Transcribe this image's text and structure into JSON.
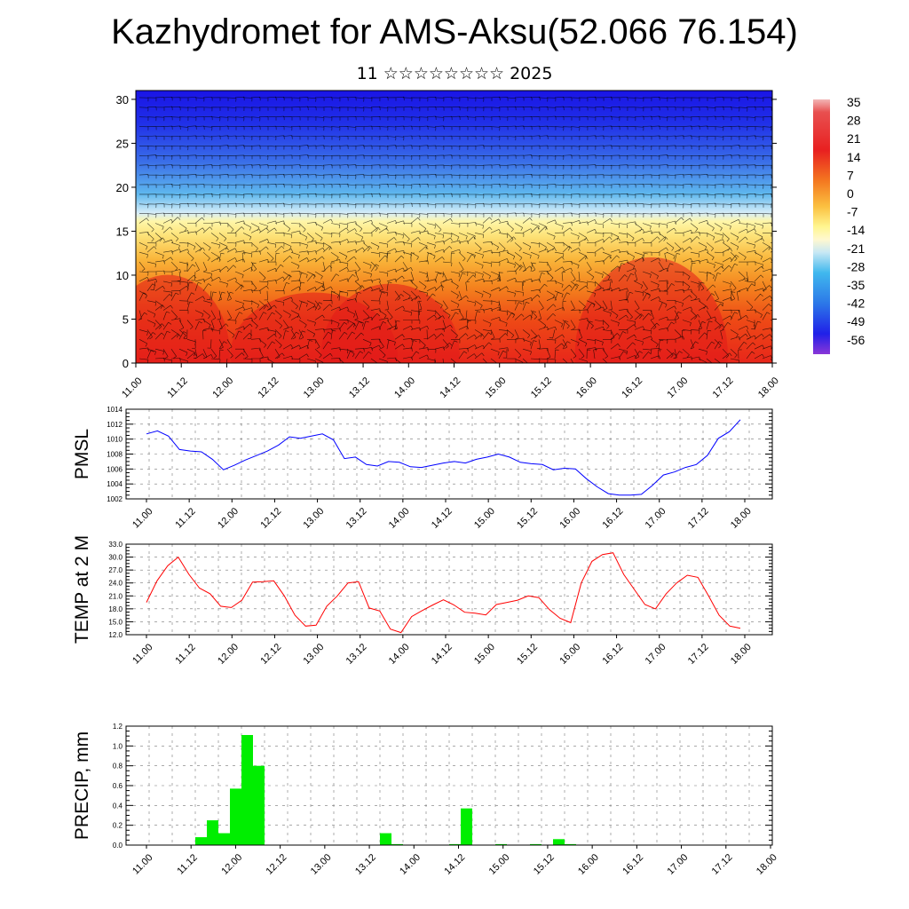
{
  "title": "Kazhydromet for AMS-Aksu(52.066 76.154)",
  "subtitle": "11 ☆☆☆☆☆☆☆☆ 2025",
  "colors": {
    "pmsl_line": "#0000ff",
    "temp_line": "#ff0000",
    "precip_bar": "#00ee00",
    "grid": "#555555"
  },
  "chart_data": [
    {
      "type": "heatmap",
      "name": "cross-section",
      "x_ticks": [
        "11.00",
        "11.12",
        "12.00",
        "12.12",
        "13.00",
        "13.12",
        "14.00",
        "14.12",
        "15.00",
        "15.12",
        "16.00",
        "16.12",
        "17.00",
        "17.12",
        "18.00"
      ],
      "y_ticks": [
        "0",
        "5",
        "10",
        "15",
        "20",
        "25",
        "30"
      ],
      "ylim": [
        0,
        31
      ],
      "colorbar_labels": [
        "35",
        "28",
        "21",
        "14",
        "7",
        "0",
        "-7",
        "-14",
        "-21",
        "-28",
        "-35",
        "-42",
        "-49",
        "-56"
      ],
      "overlay": "wind barbs"
    },
    {
      "type": "line",
      "ylabel": "PMSL",
      "ylim": [
        1002,
        1014
      ],
      "y_ticks": [
        "1002",
        "1004",
        "1006",
        "1008",
        "1010",
        "1012",
        "1014"
      ],
      "x_ticks": [
        "11.00",
        "11.12",
        "12.00",
        "12.12",
        "13.00",
        "13.12",
        "14.00",
        "14.12",
        "15.00",
        "15.12",
        "16.00",
        "16.12",
        "17.00",
        "17.12",
        "18.00"
      ],
      "series": [
        {
          "values": [
            1010.7,
            1011.1,
            1010.4,
            1008.6,
            1008.4,
            1008.3,
            1007.3,
            1005.9,
            1006.5,
            1007.2,
            1007.8,
            1008.4,
            1009.2,
            1010.3,
            1010.1,
            1010.4,
            1010.7,
            1009.9,
            1007.4,
            1007.6,
            1006.6,
            1006.4,
            1007.0,
            1006.9,
            1006.3,
            1006.2,
            1006.5,
            1006.8,
            1007.0,
            1006.8,
            1007.3,
            1007.6,
            1008.0,
            1007.6,
            1006.9,
            1006.7,
            1006.6,
            1005.9,
            1006.1,
            1006.0,
            1004.7,
            1003.6,
            1002.7,
            1002.5,
            1002.5,
            1002.6,
            1003.8,
            1005.2,
            1005.6,
            1006.2,
            1006.6,
            1007.8,
            1010.1,
            1011.0,
            1012.6
          ]
        }
      ]
    },
    {
      "type": "line",
      "ylabel": "TEMP at 2 M",
      "ylim": [
        12,
        33
      ],
      "y_ticks": [
        "12.0",
        "15.0",
        "18.0",
        "21.0",
        "24.0",
        "27.0",
        "30.0",
        "33.0"
      ],
      "x_ticks": [
        "11.00",
        "11.12",
        "12.00",
        "12.12",
        "13.00",
        "13.12",
        "14.00",
        "14.12",
        "15.00",
        "15.12",
        "16.00",
        "16.12",
        "17.00",
        "17.12",
        "18.00"
      ],
      "series": [
        {
          "values": [
            19.5,
            24.5,
            28.0,
            30.0,
            26.0,
            22.8,
            21.5,
            18.6,
            18.3,
            20.0,
            24.2,
            24.3,
            24.5,
            21.0,
            16.5,
            14.0,
            14.2,
            18.6,
            21.0,
            24.0,
            24.3,
            18.2,
            17.5,
            13.3,
            12.5,
            16.2,
            17.6,
            18.9,
            20.1,
            18.9,
            17.2,
            17.0,
            16.6,
            19.0,
            19.5,
            20.0,
            21.0,
            20.6,
            17.8,
            15.8,
            14.8,
            24.0,
            29.0,
            30.6,
            31.0,
            26.0,
            22.5,
            19.0,
            18.0,
            21.5,
            24.0,
            25.8,
            25.3,
            21.0,
            16.5,
            14.0,
            13.5
          ]
        }
      ]
    },
    {
      "type": "bar",
      "ylabel": "PRECIP, mm",
      "ylim": [
        0,
        1.2
      ],
      "y_ticks": [
        "0.0",
        "0.2",
        "0.4",
        "0.6",
        "0.8",
        "1.0",
        "1.2"
      ],
      "x_ticks": [
        "11.00",
        "11.12",
        "12.00",
        "12.12",
        "13.00",
        "13.12",
        "14.00",
        "14.12",
        "15.00",
        "15.12",
        "16.00",
        "16.12",
        "17.00",
        "17.12",
        "18.00"
      ],
      "values": [
        0,
        0,
        0,
        0,
        0,
        0,
        0.08,
        0.25,
        0.12,
        0.57,
        1.11,
        0.8,
        0,
        0,
        0,
        0,
        0,
        0,
        0,
        0,
        0,
        0,
        0.12,
        0.01,
        0,
        0,
        0,
        0,
        0.01,
        0.37,
        0,
        0,
        0.01,
        0,
        0,
        0.01,
        0,
        0.06,
        0.01,
        0,
        0,
        0,
        0,
        0,
        0,
        0,
        0,
        0,
        0,
        0,
        0,
        0,
        0,
        0,
        0,
        0
      ]
    }
  ]
}
